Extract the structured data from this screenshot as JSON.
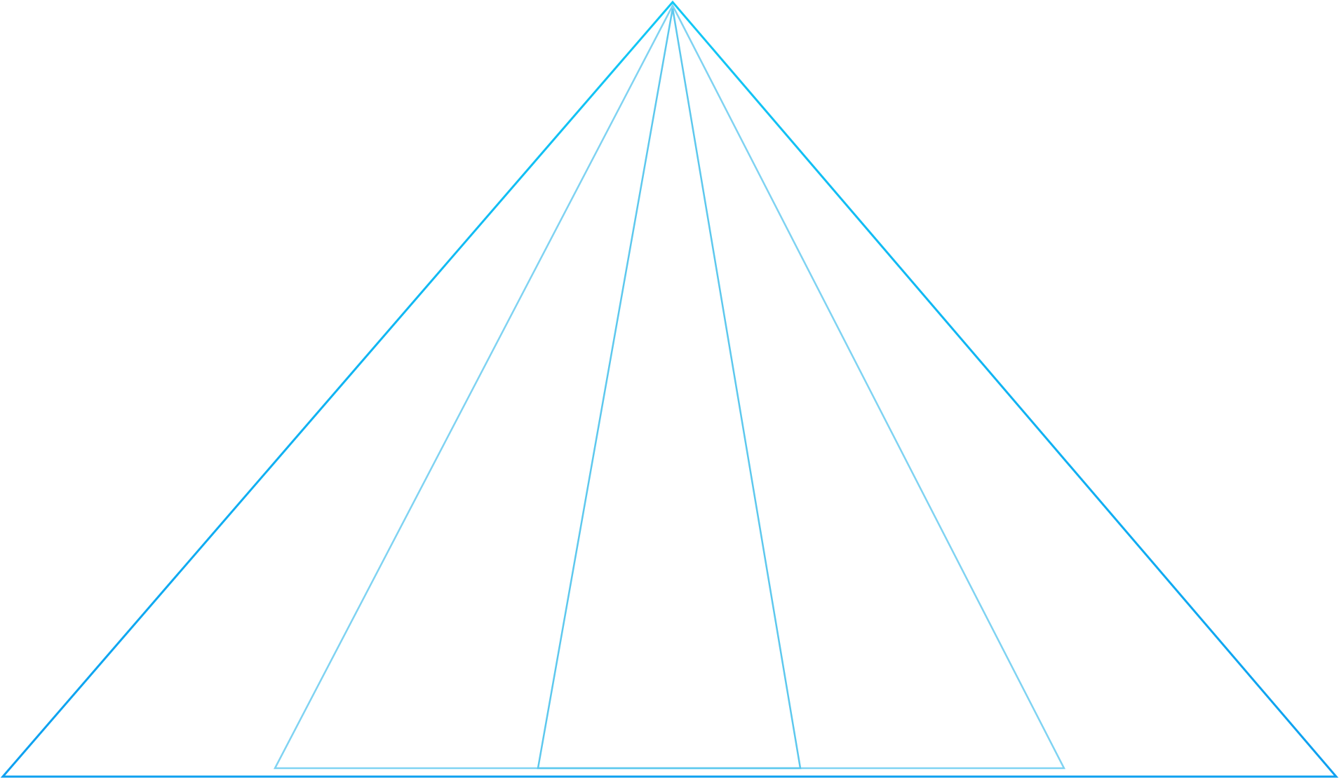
{
  "diagram": {
    "kind": "nested-triangles",
    "shared_apex": true,
    "triangles": [
      {
        "name": "outer",
        "stroke": "grad-outer"
      },
      {
        "name": "middle",
        "stroke": "#7fd3f2"
      },
      {
        "name": "inner",
        "stroke": "#5cc8ee"
      }
    ],
    "colors": {
      "outer_top": "#12c8f5",
      "outer_bottom": "#0ea0f0",
      "middle": "#7fd3f2",
      "inner": "#5cc8ee",
      "background": "#ffffff"
    }
  }
}
